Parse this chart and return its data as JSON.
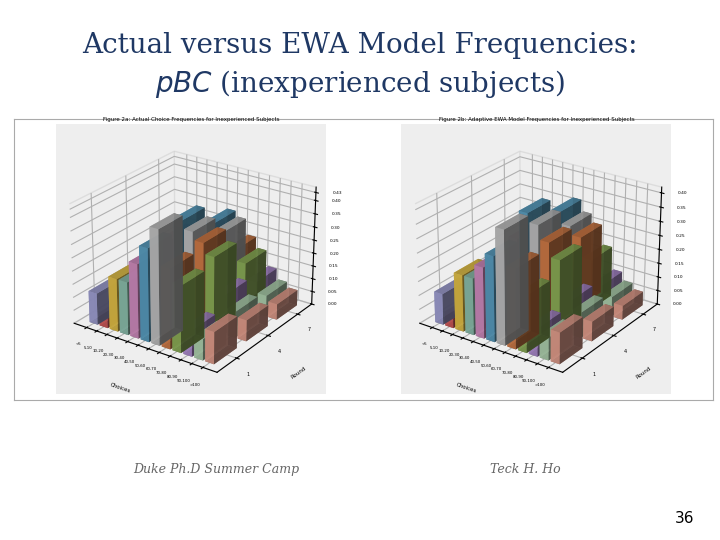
{
  "title_line1": "Actual versus EWA Model Frequencies:",
  "title_line2": "pBC (inexperienced subjects)",
  "title_color": "#1F3864",
  "title_fontsize": 20,
  "background_color": "#FFFFFF",
  "footer_left": "Duke Ph.D Summer Camp",
  "footer_right": "Teck H. Ho",
  "footer_color": "#666666",
  "footer_fontsize": 9,
  "page_number": "36",
  "fig1_title": "Figure 2a: Actual Choice Frequencies for Inexperienced Subjects",
  "fig2_title": "Figure 2b: Adaptive EWA Model Frequencies for Inexperienced Subjects",
  "xlabel": "Choices",
  "ylabel": "Round",
  "choice_labels": [
    "<5",
    "5-10",
    "10-20",
    "20-30",
    "30-40",
    "40-50",
    "50-60",
    "60-70",
    "70-80",
    "80-90",
    "90-100",
    ">100"
  ],
  "round_labels": [
    "1",
    "4",
    "7"
  ],
  "yticks1": [
    0.0,
    0.05,
    0.1,
    0.15,
    0.2,
    0.25,
    0.3,
    0.35,
    0.4,
    0.43
  ],
  "yticks2": [
    0.0,
    0.05,
    0.1,
    0.15,
    0.2,
    0.25,
    0.3,
    0.35,
    0.4
  ],
  "ylim1": [
    0.0,
    0.45
  ],
  "ylim2": [
    0.0,
    0.42
  ],
  "actual_data": [
    [
      0.12,
      0.05,
      0.2,
      0.2,
      0.28,
      0.35,
      0.43,
      0.3,
      0.25,
      0.1,
      0.08,
      0.12
    ],
    [
      0.05,
      0.08,
      0.18,
      0.22,
      0.3,
      0.38,
      0.35,
      0.32,
      0.28,
      0.15,
      0.1,
      0.08
    ],
    [
      0.03,
      0.05,
      0.1,
      0.15,
      0.25,
      0.3,
      0.28,
      0.22,
      0.18,
      0.12,
      0.08,
      0.06
    ]
  ],
  "model_data": [
    [
      0.11,
      0.05,
      0.2,
      0.2,
      0.25,
      0.3,
      0.4,
      0.28,
      0.2,
      0.1,
      0.08,
      0.11
    ],
    [
      0.04,
      0.07,
      0.15,
      0.2,
      0.28,
      0.38,
      0.35,
      0.3,
      0.25,
      0.12,
      0.09,
      0.07
    ],
    [
      0.03,
      0.05,
      0.09,
      0.14,
      0.22,
      0.32,
      0.28,
      0.25,
      0.18,
      0.1,
      0.07,
      0.05
    ]
  ],
  "bar_colors": [
    "#9999CC",
    "#CC5555",
    "#DDBB44",
    "#88BBAA",
    "#CC88BB",
    "#5599BB",
    "#BBBBBB",
    "#CC7744",
    "#88AA55",
    "#AA88CC",
    "#AACCAA",
    "#DD9988"
  ]
}
